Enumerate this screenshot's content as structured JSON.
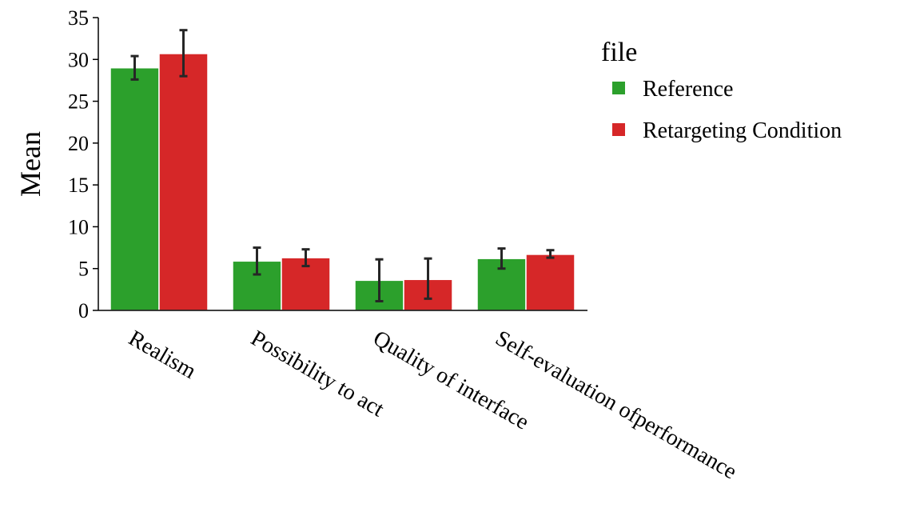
{
  "chart_data": {
    "type": "bar",
    "title": "",
    "xlabel": "",
    "ylabel": "Mean",
    "ylim": [
      0,
      35
    ],
    "yticks": [
      0,
      5,
      10,
      15,
      20,
      25,
      30,
      35
    ],
    "grid": false,
    "categories": [
      "Realism",
      "Possibility to act",
      "Quality of interface",
      "Self-evaluation ofperformance"
    ],
    "legend": {
      "title": "file",
      "placement": "right"
    },
    "series": [
      {
        "name": "Reference",
        "color": "#2ca02c",
        "values": [
          29.0,
          5.9,
          3.6,
          6.2
        ],
        "error_low": [
          27.6,
          4.3,
          1.1,
          5.0
        ],
        "error_high": [
          30.4,
          7.5,
          6.1,
          7.4
        ]
      },
      {
        "name": "Retargeting Condition",
        "color": "#d62728",
        "values": [
          30.7,
          6.3,
          3.7,
          6.7
        ],
        "error_low": [
          28.0,
          5.3,
          1.4,
          6.3
        ],
        "error_high": [
          33.5,
          7.3,
          6.2,
          7.2
        ]
      }
    ],
    "errorbar_color": "#262626"
  }
}
